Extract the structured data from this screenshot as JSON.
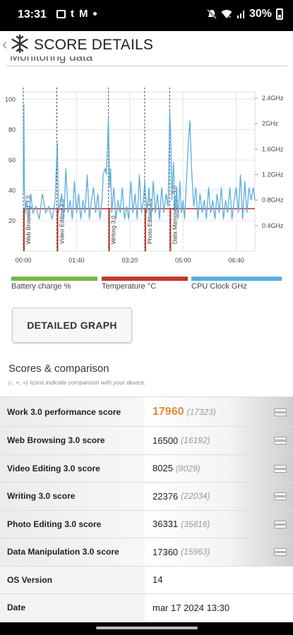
{
  "status_bar": {
    "time": "13:31",
    "notif_icons": [
      "gallery-icon",
      "tumblr-icon",
      "gmail-icon",
      "dot-icon"
    ],
    "tumblr_glyph": "t",
    "gmail_glyph": "M",
    "sys_icons": [
      "mute-icon",
      "wifi-icon",
      "signal-icon",
      "battery-icon"
    ],
    "battery_pct": "30%"
  },
  "header": {
    "back_glyph": "‹",
    "logo_icon": "snowflake-icon",
    "title": "SCORE DETAILS"
  },
  "section_cut_text": "Monitoring data",
  "chart_data": {
    "type": "line",
    "x_tick_labels": [
      "00:00",
      "01:40",
      "03:20",
      "05:00",
      "06:40"
    ],
    "x_tick_minutes": [
      0,
      100,
      200,
      300,
      400
    ],
    "xlim_minutes": [
      0,
      435
    ],
    "left_axis": {
      "ticks": [
        20,
        40,
        60,
        80,
        100
      ],
      "ylim": [
        0,
        105
      ]
    },
    "right_axis": {
      "tick_labels": [
        "0.4GHz",
        "0.8GHz",
        "1.2GHz",
        "1.6GHz",
        "2GHz",
        "2.4GHz"
      ],
      "ticks": [
        0.4,
        0.8,
        1.2,
        1.6,
        2.0,
        2.4
      ],
      "ylim": [
        0,
        2.5
      ]
    },
    "grid": true,
    "annotations": [
      {
        "label": "Web Browsing 3.0",
        "x_minutes": 0
      },
      {
        "label": "Video Editing 3.0",
        "x_minutes": 63
      },
      {
        "label": "Writing 3.0",
        "x_minutes": 160
      },
      {
        "label": "Photo Editing 3.0",
        "x_minutes": 228
      },
      {
        "label": "Data Manipulation 3.0",
        "x_minutes": 275
      }
    ],
    "series": [
      {
        "name": "Temperature °C",
        "color": "#c0392b",
        "points": [
          [
            0,
            28
          ],
          [
            2,
            28
          ],
          [
            62,
            28
          ],
          [
            64,
            28
          ],
          [
            158,
            28
          ],
          [
            160,
            28
          ],
          [
            226,
            28
          ],
          [
            228,
            28
          ],
          [
            273,
            28
          ],
          [
            275,
            28
          ],
          [
            300,
            28
          ],
          [
            330,
            28
          ],
          [
            360,
            28
          ],
          [
            435,
            28
          ]
        ]
      },
      {
        "name": "CPU Clock GHz",
        "color": "#5aaee0",
        "points": [
          [
            0,
            0.9
          ],
          [
            1,
            2.3
          ],
          [
            2,
            1.0
          ],
          [
            4,
            0.6
          ],
          [
            6,
            0.8
          ],
          [
            10,
            0.5
          ],
          [
            14,
            0.9
          ],
          [
            18,
            0.6
          ],
          [
            24,
            0.7
          ],
          [
            30,
            0.5
          ],
          [
            36,
            0.9
          ],
          [
            42,
            0.6
          ],
          [
            48,
            0.7
          ],
          [
            54,
            0.5
          ],
          [
            60,
            0.8
          ],
          [
            62,
            1.3
          ],
          [
            64,
            1.7
          ],
          [
            66,
            0.6
          ],
          [
            72,
            0.9
          ],
          [
            76,
            0.5
          ],
          [
            80,
            1.3
          ],
          [
            84,
            0.6
          ],
          [
            88,
            0.8
          ],
          [
            92,
            0.5
          ],
          [
            96,
            1.1
          ],
          [
            100,
            0.6
          ],
          [
            104,
            0.9
          ],
          [
            108,
            0.5
          ],
          [
            112,
            0.8
          ],
          [
            116,
            0.6
          ],
          [
            120,
            1.2
          ],
          [
            124,
            0.5
          ],
          [
            128,
            0.8
          ],
          [
            132,
            1.0
          ],
          [
            136,
            0.6
          ],
          [
            140,
            0.9
          ],
          [
            144,
            0.5
          ],
          [
            148,
            0.8
          ],
          [
            150,
            1.2
          ],
          [
            154,
            1.3
          ],
          [
            156,
            1.2
          ],
          [
            158,
            1.6
          ],
          [
            160,
            2.1
          ],
          [
            162,
            1.0
          ],
          [
            164,
            1.3
          ],
          [
            166,
            0.6
          ],
          [
            170,
            1.0
          ],
          [
            174,
            0.5
          ],
          [
            178,
            0.8
          ],
          [
            182,
            0.6
          ],
          [
            186,
            1.0
          ],
          [
            190,
            0.5
          ],
          [
            194,
            0.7
          ],
          [
            198,
            0.5
          ],
          [
            202,
            1.1
          ],
          [
            206,
            0.6
          ],
          [
            210,
            0.9
          ],
          [
            214,
            0.5
          ],
          [
            218,
            1.2
          ],
          [
            222,
            0.6
          ],
          [
            226,
            0.8
          ],
          [
            228,
            1.1
          ],
          [
            232,
            0.6
          ],
          [
            236,
            1.0
          ],
          [
            240,
            0.5
          ],
          [
            244,
            1.1
          ],
          [
            248,
            0.6
          ],
          [
            252,
            0.9
          ],
          [
            256,
            0.5
          ],
          [
            260,
            1.0
          ],
          [
            264,
            0.6
          ],
          [
            268,
            0.9
          ],
          [
            272,
            0.7
          ],
          [
            275,
            2.2
          ],
          [
            277,
            1.8
          ],
          [
            279,
            0.8
          ],
          [
            282,
            1.4
          ],
          [
            285,
            0.6
          ],
          [
            288,
            1.0
          ],
          [
            291,
            0.5
          ],
          [
            294,
            1.1
          ],
          [
            297,
            0.6
          ],
          [
            300,
            0.8
          ],
          [
            303,
            0.5
          ],
          [
            306,
            1.0
          ],
          [
            310,
            1.7
          ],
          [
            313,
            2.05
          ],
          [
            316,
            1.3
          ],
          [
            320,
            0.7
          ],
          [
            324,
            1.0
          ],
          [
            328,
            0.5
          ],
          [
            332,
            0.9
          ],
          [
            336,
            0.6
          ],
          [
            340,
            0.8
          ],
          [
            344,
            0.5
          ],
          [
            348,
            1.0
          ],
          [
            352,
            0.6
          ],
          [
            356,
            0.8
          ],
          [
            360,
            0.5
          ],
          [
            364,
            0.9
          ],
          [
            368,
            0.6
          ],
          [
            372,
            1.0
          ],
          [
            376,
            0.5
          ],
          [
            380,
            0.8
          ],
          [
            384,
            0.6
          ],
          [
            388,
            1.0
          ],
          [
            392,
            0.5
          ],
          [
            396,
            0.8
          ],
          [
            400,
            1.0
          ],
          [
            404,
            0.6
          ],
          [
            408,
            1.2
          ],
          [
            412,
            0.5
          ],
          [
            416,
            1.1
          ],
          [
            420,
            0.6
          ],
          [
            424,
            1.0
          ],
          [
            428,
            0.8
          ],
          [
            432,
            1.0
          ],
          [
            435,
            0.8
          ]
        ]
      }
    ]
  },
  "legend": [
    {
      "label": "Battery charge %",
      "color": "#7ab648"
    },
    {
      "label": "Temperature °C",
      "color": "#c0392b"
    },
    {
      "label": "CPU Clock GHz",
      "color": "#5aaee0"
    }
  ],
  "detailed_graph_label": "DETAILED GRAPH",
  "scores": {
    "title": "Scores & comparison",
    "subtitle": "(-, +, =) Icons indicate comparison with your device.",
    "rows": [
      {
        "label": "Work 3.0 performance score",
        "value": "17960",
        "compare": "(17323)",
        "icon": "equal-icon"
      },
      {
        "label": "Web Browsing 3.0 score",
        "value": "16500",
        "compare": "(16192)",
        "icon": "equal-icon"
      },
      {
        "label": "Video Editing 3.0 score",
        "value": "8025",
        "compare": "(8029)",
        "icon": "equal-icon"
      },
      {
        "label": "Writing 3.0 score",
        "value": "22376",
        "compare": "(22034)",
        "icon": "equal-icon"
      },
      {
        "label": "Photo Editing 3.0 score",
        "value": "36331",
        "compare": "(35816)",
        "icon": "equal-icon"
      },
      {
        "label": "Data Manipulation 3.0 score",
        "value": "17360",
        "compare": "(15963)",
        "icon": "equal-icon"
      }
    ],
    "os_label": "OS Version",
    "os_value": "14",
    "date_label": "Date",
    "date_value": "mar 17 2024 13:30"
  }
}
